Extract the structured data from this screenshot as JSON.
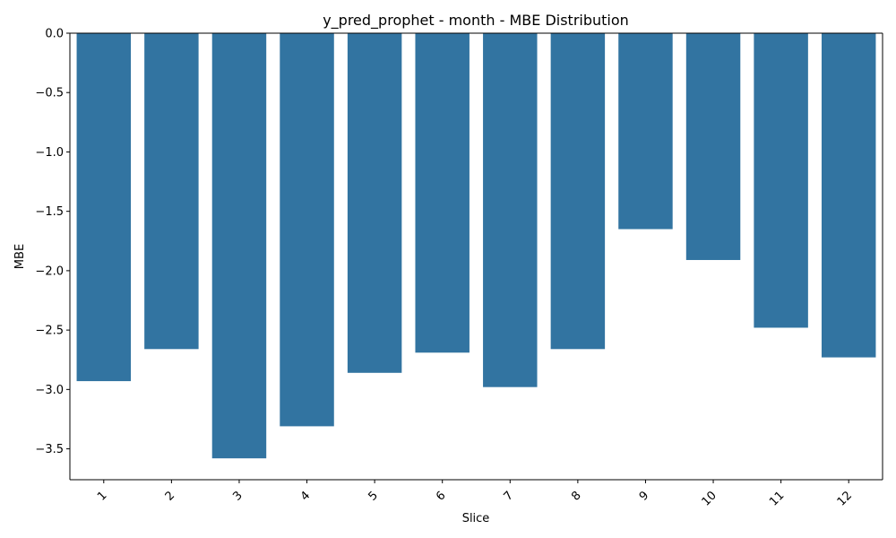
{
  "chart_data": {
    "type": "bar",
    "title": "y_pred_prophet - month - MBE Distribution",
    "xlabel": "Slice",
    "ylabel": "MBE",
    "categories": [
      "1",
      "2",
      "3",
      "4",
      "5",
      "6",
      "7",
      "8",
      "9",
      "10",
      "11",
      "12"
    ],
    "values": [
      -2.93,
      -2.66,
      -3.58,
      -3.31,
      -2.86,
      -2.69,
      -2.98,
      -2.66,
      -1.65,
      -1.91,
      -2.48,
      -2.73
    ],
    "ylim": [
      -3.76,
      0.0
    ],
    "yticks": [
      0.0,
      -0.5,
      -1.0,
      -1.5,
      -2.0,
      -2.5,
      -3.0,
      -3.5
    ],
    "ytick_labels": [
      "0.0",
      "−0.5",
      "−1.0",
      "−1.5",
      "−2.0",
      "−2.5",
      "−3.0",
      "−3.5"
    ],
    "bar_color": "#3274a1",
    "grid": false,
    "legend": "none",
    "xtick_rotation_deg": 45
  }
}
